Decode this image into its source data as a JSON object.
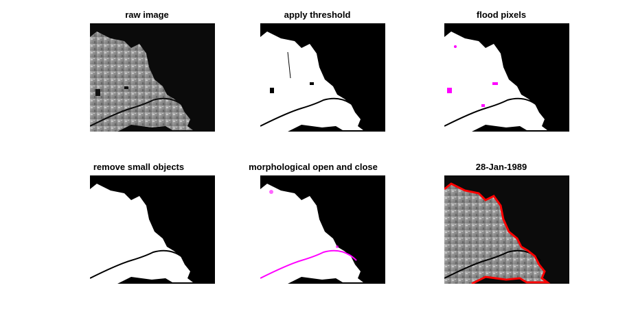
{
  "figure": {
    "panels": [
      {
        "title": "raw image"
      },
      {
        "title": "apply threshold"
      },
      {
        "title": "flood pixels"
      },
      {
        "title": "remove small objects"
      },
      {
        "title": "morphological open and close"
      },
      {
        "title": "28-Jan-1989"
      }
    ]
  },
  "colors": {
    "background": "#000000",
    "mask": "#ffffff",
    "highlight": "#ff00ff",
    "outline": "#ff0000",
    "river": "#000000"
  }
}
